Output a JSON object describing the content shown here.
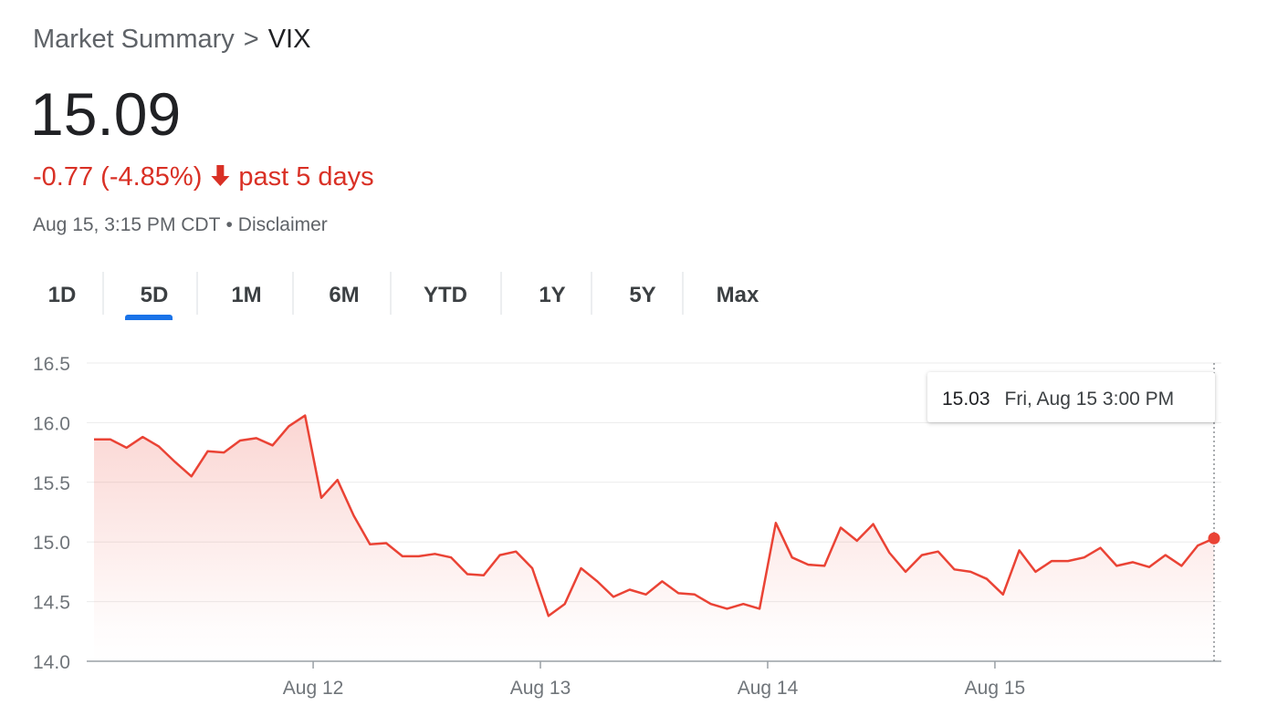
{
  "header": {
    "breadcrumb": "Market Summary",
    "separator": ">",
    "symbol": "VIX",
    "price": "15.09",
    "change": "-0.77 (-4.85%)",
    "period": "past 5 days",
    "timestamp": "Aug 15, 3:15 PM CDT",
    "dot": "•",
    "disclaimer": "Disclaimer"
  },
  "tabs": {
    "items": [
      "1D",
      "5D",
      "1M",
      "6M",
      "YTD",
      "1Y",
      "5Y",
      "Max"
    ],
    "selected": "5D"
  },
  "chart_data": {
    "type": "line",
    "color": "#ea4335",
    "grid": true,
    "x": [
      0,
      1,
      2,
      3,
      4,
      5,
      6,
      7,
      8,
      9,
      10,
      11,
      12,
      13,
      14,
      15,
      16,
      17,
      18,
      19,
      20,
      21,
      22,
      23,
      24,
      25,
      26,
      27,
      28,
      29,
      30,
      31,
      32,
      33,
      34,
      35,
      36,
      37,
      38,
      39,
      40,
      41,
      42,
      43,
      44,
      45,
      46,
      47,
      48,
      49,
      50,
      51,
      52,
      53,
      54,
      55,
      56,
      57,
      58,
      59,
      60,
      61,
      62,
      63,
      64,
      65,
      66,
      67,
      68,
      69
    ],
    "values": [
      15.86,
      15.86,
      15.79,
      15.88,
      15.8,
      15.67,
      15.55,
      15.76,
      15.75,
      15.85,
      15.87,
      15.81,
      15.97,
      16.06,
      15.37,
      15.52,
      15.22,
      14.98,
      14.99,
      14.88,
      14.88,
      14.9,
      14.87,
      14.73,
      14.72,
      14.89,
      14.92,
      14.78,
      14.38,
      14.48,
      14.78,
      14.67,
      14.54,
      14.6,
      14.56,
      14.67,
      14.57,
      14.56,
      14.48,
      14.44,
      14.48,
      14.44,
      15.16,
      14.87,
      14.81,
      14.8,
      15.12,
      15.01,
      15.15,
      14.91,
      14.75,
      14.89,
      14.92,
      14.77,
      14.75,
      14.69,
      14.56,
      14.93,
      14.75,
      14.84,
      14.84,
      14.87,
      14.95,
      14.8,
      14.83,
      14.79,
      14.89,
      14.8,
      14.97,
      15.03
    ],
    "xlim": [
      -0.45,
      69.45
    ],
    "xticks": [
      {
        "value": 13.5,
        "label": "Aug 12"
      },
      {
        "value": 27.5,
        "label": "Aug 13"
      },
      {
        "value": 41.5,
        "label": "Aug 14"
      },
      {
        "value": 55.5,
        "label": "Aug 15"
      }
    ],
    "ylim": [
      14,
      16.5
    ],
    "yticks": [
      {
        "value": 14,
        "label": "14.0"
      },
      14.5,
      {
        "value": 15,
        "label": "15.0"
      },
      15.5,
      {
        "value": 16,
        "label": "16.0"
      },
      16.5
    ],
    "tooltip": {
      "value": 15.03,
      "label": "Fri, Aug 15 3:00 PM"
    }
  }
}
